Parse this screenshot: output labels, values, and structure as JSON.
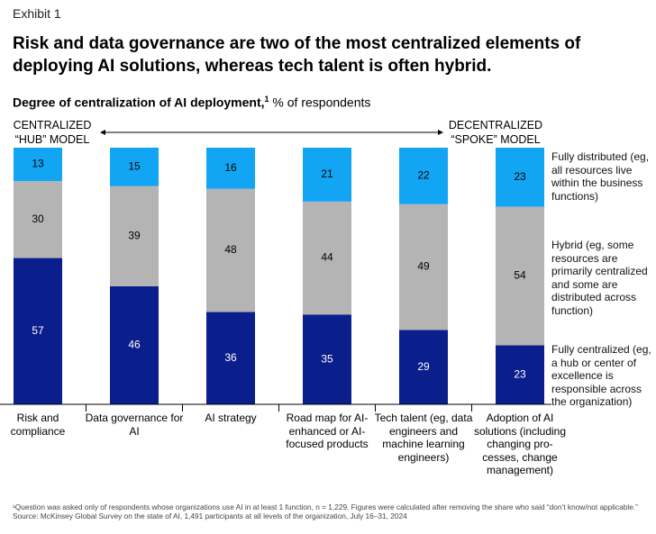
{
  "exhibit": "Exhibit 1",
  "title": "Risk and data governance are two of the most centralized elements of deploying AI solutions, whereas tech talent is often hybrid.",
  "subtitle": {
    "bold": "Degree of centralization of AI deployment,",
    "sup": "1",
    "rest": " % of respondents"
  },
  "scale_labels": {
    "left_line1": "CENTRALIZED",
    "left_line2": "“HUB” MODEL",
    "right_line1": "DECENTRALIZED",
    "right_line2": "“SPOKE” MODEL"
  },
  "legend": {
    "fully_distributed": "Fully distributed (eg, all resources live within the business functions)",
    "hybrid": "Hybrid (eg, some resources are primarily centralized and some are distributed across function)",
    "fully_centralized": "Fully centralized (eg, a hub or center of excellence is responsible across the organization)"
  },
  "chart_data": {
    "type": "bar",
    "stacked": true,
    "orientation": "vertical",
    "categories": [
      "Risk and compliance",
      "Data governance for AI",
      "AI strategy",
      "Road map for AI-enhanced or AI-focused products",
      "Tech talent (eg, data engineers and machine learning engineers)",
      "Adoption of AI solutions (including changing pro-cesses, change management)"
    ],
    "series": [
      {
        "name": "Fully centralized",
        "color": "#0B1F8C",
        "values": [
          57,
          46,
          36,
          35,
          29,
          23
        ]
      },
      {
        "name": "Hybrid",
        "color": "#B4B4B4",
        "values": [
          30,
          39,
          48,
          44,
          49,
          54
        ]
      },
      {
        "name": "Fully distributed",
        "color": "#12A5F4",
        "values": [
          13,
          15,
          16,
          21,
          22,
          23
        ]
      }
    ],
    "ylim": [
      0,
      100
    ],
    "unit": "% of respondents",
    "grid": false,
    "legend_position": "right"
  },
  "footnotes": {
    "note1": "¹Question was asked only of respondents whose organizations use AI in at least 1 function, n = 1,229. Figures were calculated after removing the share who said “don’t know/not applicable.”",
    "source": "Source: McKinsey Global Survey on the state of AI, 1,491 participants at all levels of the organization, July 16–31, 2024"
  }
}
